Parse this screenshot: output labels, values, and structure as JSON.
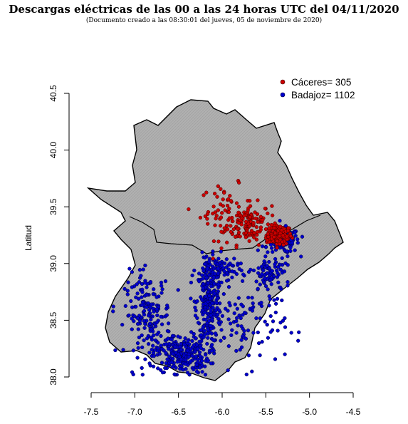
{
  "header": {
    "title": "Descargas eléctricas de las 00 a las 24 horas UTC del 04/11/2020",
    "subtitle": "(Documento creado a las 08:30:01 del jueves, 05 de noviembre de 2020)"
  },
  "legend": {
    "caceres_label": "Cáceres= 305",
    "badajoz_label": "Badajoz= 1102"
  },
  "colors": {
    "caceres": "#cc0000",
    "badajoz": "#0000cc",
    "relief": "#b4b4b4",
    "border": "#000000"
  },
  "chart_data": {
    "type": "scatter",
    "title": "Descargas eléctricas de las 00 a las 24 horas UTC del 04/11/2020",
    "xlabel": "",
    "ylabel": "Latitud",
    "xlim": [
      -7.5,
      -4.5
    ],
    "ylim": [
      38.0,
      40.5
    ],
    "x_ticks": [
      "-7.5",
      "-7.0",
      "-6.5",
      "-6.0",
      "-5.5",
      "-5.0",
      "-4.5"
    ],
    "y_ticks": [
      "38.0",
      "38.5",
      "39.0",
      "39.5",
      "40.0",
      "40.5"
    ],
    "legend_position": "top-right",
    "series": [
      {
        "name": "Cáceres= 305",
        "count": 305
      },
      {
        "name": "Badajoz= 1102",
        "count": 1102
      }
    ],
    "clusters": [
      {
        "series": 0,
        "lon": -5.35,
        "lat": 39.25,
        "spread_lon": 0.12,
        "spread_lat": 0.07,
        "n": 120
      },
      {
        "series": 0,
        "lon": -5.7,
        "lat": 39.35,
        "spread_lon": 0.22,
        "spread_lat": 0.15,
        "n": 120
      },
      {
        "series": 0,
        "lon": -5.95,
        "lat": 39.45,
        "spread_lon": 0.25,
        "spread_lat": 0.2,
        "n": 65
      },
      {
        "series": 1,
        "lon": -5.3,
        "lat": 39.2,
        "spread_lon": 0.15,
        "spread_lat": 0.09,
        "n": 150
      },
      {
        "series": 1,
        "lon": -6.15,
        "lat": 38.65,
        "spread_lon": 0.12,
        "spread_lat": 0.3,
        "n": 240
      },
      {
        "series": 1,
        "lon": -6.45,
        "lat": 38.2,
        "spread_lon": 0.25,
        "spread_lat": 0.14,
        "n": 260
      },
      {
        "series": 1,
        "lon": -6.85,
        "lat": 38.55,
        "spread_lon": 0.22,
        "spread_lat": 0.3,
        "n": 180
      },
      {
        "series": 1,
        "lon": -5.7,
        "lat": 38.45,
        "spread_lon": 0.35,
        "spread_lat": 0.3,
        "n": 90
      },
      {
        "series": 1,
        "lon": -5.45,
        "lat": 38.9,
        "spread_lon": 0.2,
        "spread_lat": 0.15,
        "n": 90
      },
      {
        "series": 1,
        "lon": -6.05,
        "lat": 38.95,
        "spread_lon": 0.2,
        "spread_lat": 0.1,
        "n": 92
      }
    ]
  }
}
